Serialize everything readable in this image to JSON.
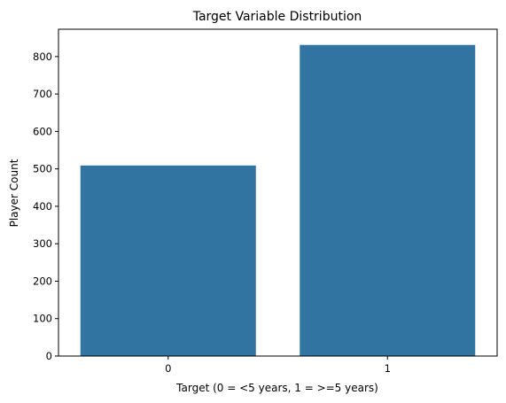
{
  "chart_data": {
    "type": "bar",
    "title": "Target Variable Distribution",
    "xlabel": "Target (0 = <5 years, 1 = >=5 years)",
    "ylabel": "Player Count",
    "categories": [
      "0",
      "1"
    ],
    "values": [
      509,
      831
    ],
    "ylim": [
      0,
      873
    ],
    "yticks": [
      0,
      100,
      200,
      300,
      400,
      500,
      600,
      700,
      800
    ],
    "grid": false,
    "bar_color": "#3274a1"
  }
}
